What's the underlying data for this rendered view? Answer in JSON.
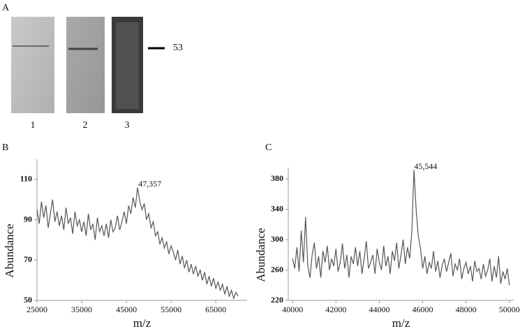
{
  "figure": {
    "panel_labels": [
      "A",
      "B",
      "C"
    ],
    "lanes": [
      "1",
      "2",
      "3"
    ],
    "marker": "53"
  },
  "chart_data": [
    {
      "type": "line",
      "xlabel": "m/z",
      "ylabel": "Abundance",
      "color": "#555555",
      "xlim": [
        25000,
        72000
      ],
      "ylim": [
        50,
        120
      ],
      "xticks": [
        25000,
        35000,
        45000,
        55000,
        65000
      ],
      "yticks": [
        50,
        70,
        90,
        110
      ],
      "annotation": {
        "label": "47,357",
        "x": 47357,
        "y": 106
      },
      "x": [
        25000,
        25500,
        26000,
        26500,
        27000,
        27500,
        28000,
        28500,
        29000,
        29500,
        30000,
        30500,
        31000,
        31500,
        32000,
        32500,
        33000,
        33500,
        34000,
        34500,
        35000,
        35500,
        36000,
        36500,
        37000,
        37500,
        38000,
        38500,
        39000,
        39500,
        40000,
        40500,
        41000,
        41500,
        42000,
        42500,
        43000,
        43500,
        44000,
        44500,
        45000,
        45500,
        46000,
        46500,
        47000,
        47500,
        48000,
        48500,
        49000,
        49500,
        50000,
        50500,
        51000,
        51500,
        52000,
        52500,
        53000,
        53500,
        54000,
        54500,
        55000,
        55500,
        56000,
        56500,
        57000,
        57500,
        58000,
        58500,
        59000,
        59500,
        60000,
        60500,
        61000,
        61500,
        62000,
        62500,
        63000,
        63500,
        64000,
        64500,
        65000,
        65500,
        66000,
        66500,
        67000,
        67500,
        68000,
        68500,
        69000,
        69500,
        70000
      ],
      "values": [
        95,
        88,
        99,
        91,
        97,
        86,
        93,
        100,
        89,
        94,
        87,
        92,
        85,
        96,
        88,
        91,
        83,
        94,
        87,
        90,
        84,
        89,
        82,
        93,
        85,
        88,
        80,
        91,
        84,
        87,
        82,
        88,
        81,
        90,
        84,
        86,
        92,
        85,
        89,
        94,
        88,
        97,
        93,
        101,
        96,
        106,
        99,
        95,
        98,
        90,
        93,
        86,
        89,
        82,
        84,
        78,
        81,
        76,
        79,
        73,
        77,
        74,
        70,
        75,
        68,
        72,
        66,
        70,
        64,
        68,
        63,
        67,
        62,
        65,
        60,
        64,
        58,
        62,
        57,
        61,
        56,
        59,
        55,
        58,
        53,
        57,
        52,
        55,
        51,
        54,
        52
      ]
    },
    {
      "type": "line",
      "xlabel": "m/z",
      "ylabel": "Abundance",
      "color": "#555555",
      "xlim": [
        39800,
        50200
      ],
      "ylim": [
        220,
        395
      ],
      "xticks": [
        40000,
        42000,
        44000,
        46000,
        48000,
        50000
      ],
      "yticks": [
        220,
        260,
        300,
        340,
        380
      ],
      "annotation": {
        "label": "45,544",
        "x": 45544,
        "y": 392
      },
      "x": [
        40000,
        40100,
        40200,
        40300,
        40400,
        40500,
        40600,
        40700,
        40800,
        40900,
        41000,
        41100,
        41200,
        41300,
        41400,
        41500,
        41600,
        41700,
        41800,
        41900,
        42000,
        42100,
        42200,
        42300,
        42400,
        42500,
        42600,
        42700,
        42800,
        42900,
        43000,
        43100,
        43200,
        43300,
        43400,
        43500,
        43600,
        43700,
        43800,
        43900,
        44000,
        44100,
        44200,
        44300,
        44400,
        44500,
        44600,
        44700,
        44800,
        44900,
        45000,
        45100,
        45200,
        45300,
        45400,
        45500,
        45600,
        45700,
        45800,
        45900,
        46000,
        46100,
        46200,
        46300,
        46400,
        46500,
        46600,
        46700,
        46800,
        46900,
        47000,
        47100,
        47200,
        47300,
        47400,
        47500,
        47600,
        47700,
        47800,
        47900,
        48000,
        48100,
        48200,
        48300,
        48400,
        48500,
        48600,
        48700,
        48800,
        48900,
        49000,
        49100,
        49200,
        49300,
        49400,
        49500,
        49600,
        49700,
        49800,
        49900,
        50000
      ],
      "values": [
        275,
        262,
        290,
        258,
        312,
        270,
        330,
        265,
        250,
        280,
        296,
        262,
        278,
        250,
        285,
        270,
        292,
        260,
        275,
        265,
        288,
        258,
        270,
        295,
        262,
        280,
        250,
        278,
        268,
        290,
        265,
        285,
        255,
        275,
        298,
        262,
        270,
        280,
        255,
        288,
        270,
        260,
        292,
        265,
        278,
        255,
        285,
        272,
        296,
        262,
        280,
        300,
        268,
        290,
        275,
        310,
        392,
        340,
        305,
        288,
        262,
        278,
        255,
        270,
        262,
        285,
        258,
        272,
        250,
        266,
        275,
        258,
        270,
        282,
        252,
        268,
        260,
        275,
        248,
        262,
        270,
        255,
        265,
        245,
        272,
        258,
        262,
        248,
        268,
        252,
        260,
        275,
        245,
        265,
        250,
        278,
        242,
        258,
        248,
        262,
        240
      ]
    }
  ]
}
